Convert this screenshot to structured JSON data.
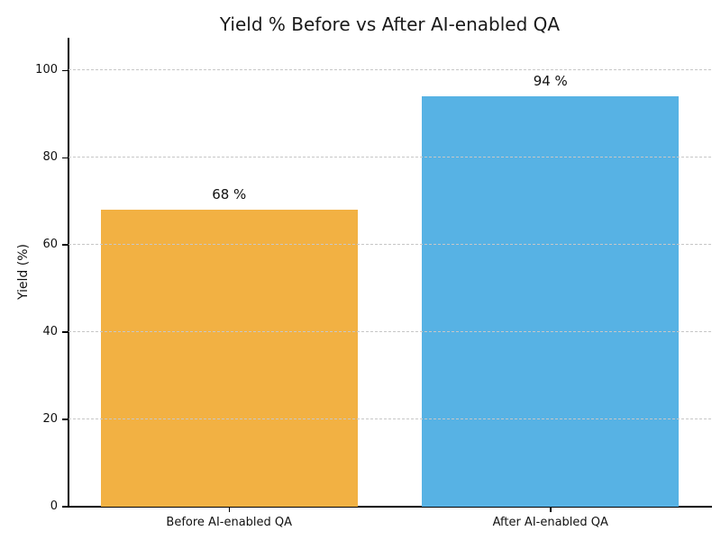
{
  "chart_data": {
    "type": "bar",
    "title": "Yield % Before vs After AI-enabled QA",
    "ylabel": "Yield (%)",
    "xlabel": "",
    "categories": [
      "Before AI-enabled QA",
      "After AI-enabled QA"
    ],
    "values": [
      68,
      94
    ],
    "value_labels": [
      "68 %",
      "94 %"
    ],
    "bar_colors": [
      "#F2B143",
      "#57B2E4"
    ],
    "yticks": [
      0,
      20,
      40,
      60,
      80,
      100
    ],
    "ylim": [
      0,
      107.5
    ],
    "grid": "horizontal dashed, drawn above bars",
    "legend": "none"
  },
  "colors": {
    "grid": "#c7c7c7",
    "axis": "#000000",
    "text": "#111111",
    "background": "#ffffff"
  }
}
